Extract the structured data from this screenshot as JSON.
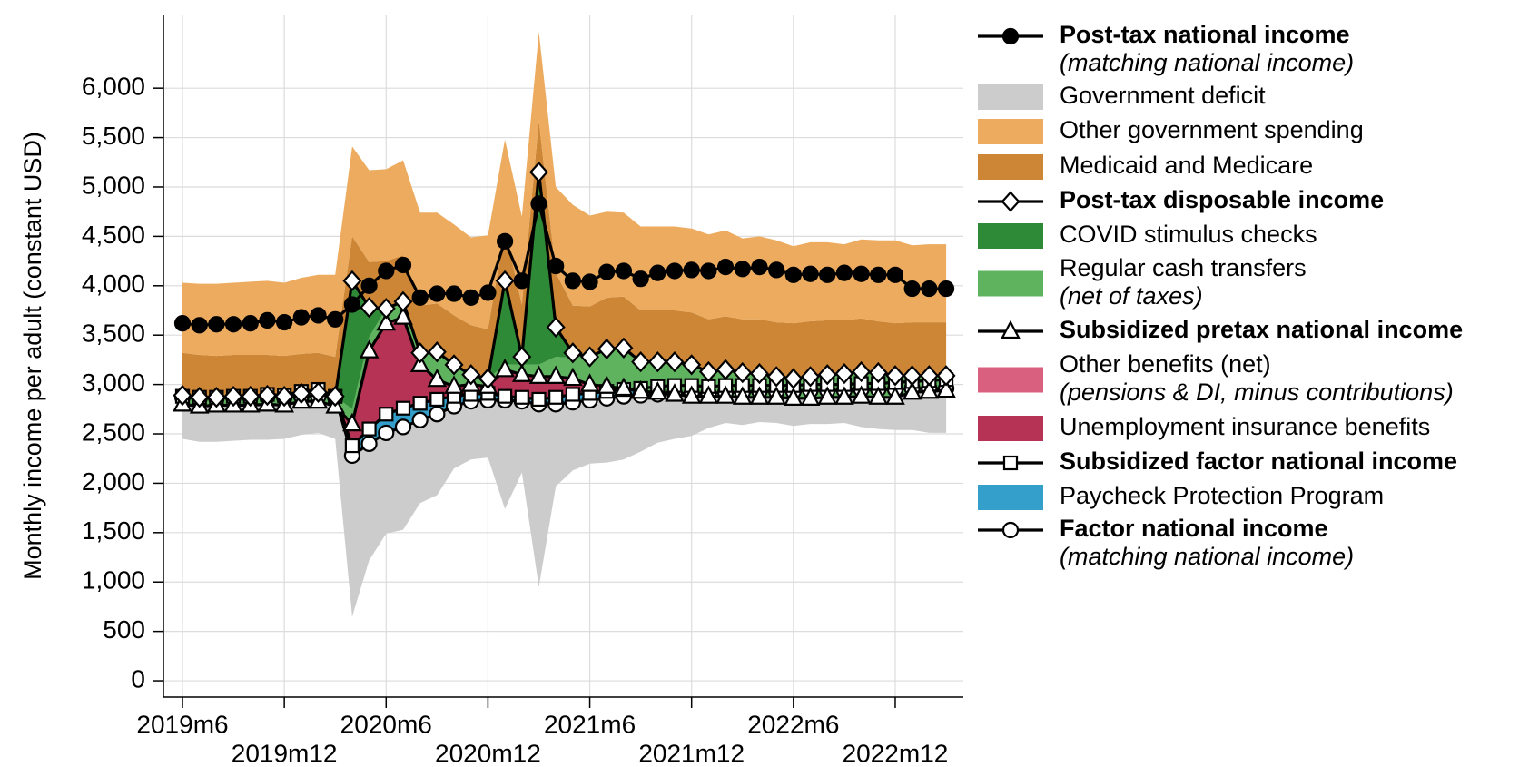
{
  "chart_data": {
    "type": "stacked-area-line",
    "y_label": "Monthly income per adult (constant USD)",
    "categories": [
      "2019m6",
      null,
      null,
      null,
      null,
      null,
      "2019m12",
      null,
      null,
      null,
      null,
      null,
      "2020m6",
      null,
      null,
      null,
      null,
      null,
      "2020m12",
      null,
      null,
      null,
      null,
      null,
      "2021m6",
      null,
      null,
      null,
      null,
      null,
      "2021m12",
      null,
      null,
      null,
      null,
      null,
      "2022m6",
      null,
      null,
      null,
      null,
      null,
      "2022m12",
      null,
      null,
      null
    ],
    "ylim": [
      -165,
      6746
    ],
    "yticks": [
      0,
      500,
      {
        "value": 1000,
        "label": "1,000"
      },
      {
        "value": 1500,
        "label": "1,500"
      },
      {
        "value": 2000,
        "label": "2,000"
      },
      {
        "value": 2500,
        "label": "2,500"
      },
      {
        "value": 3000,
        "label": "3,000"
      },
      {
        "value": 3500,
        "label": "3,500"
      },
      {
        "value": 4000,
        "label": "4,000"
      },
      {
        "value": 4500,
        "label": "4,500"
      },
      {
        "value": 5000,
        "label": "5,000"
      },
      {
        "value": 5500,
        "label": "5,500"
      },
      {
        "value": 6000,
        "label": "6,000"
      }
    ],
    "grid": true,
    "legend": "right",
    "series": [
      {
        "name": "Post-tax national income",
        "subname": "(matching national income)",
        "type": "line",
        "marker": "circle",
        "marker_fill": "#000000",
        "color": "#000000",
        "values": [
          3620,
          3600,
          3610,
          3610,
          3620,
          3650,
          3630,
          3680,
          3700,
          3660,
          3810,
          4000,
          4150,
          4210,
          3880,
          3920,
          3920,
          3880,
          3930,
          4450,
          4050,
          4830,
          4200,
          4050,
          4040,
          4140,
          4150,
          4070,
          4130,
          4150,
          4160,
          4150,
          4190,
          4170,
          4190,
          4160,
          4110,
          4120,
          4110,
          4130,
          4120,
          4110,
          4110,
          3970,
          3970,
          3970
        ]
      },
      {
        "name": "Government deficit",
        "type": "area",
        "stack": "down",
        "color": "#cccccc",
        "values": [
          420,
          440,
          440,
          440,
          430,
          440,
          420,
          390,
          370,
          420,
          1630,
          1180,
          1020,
          1040,
          840,
          820,
          630,
          590,
          580,
          1100,
          720,
          1850,
          830,
          690,
          640,
          650,
          640,
          570,
          490,
          460,
          430,
          350,
          310,
          330,
          310,
          320,
          350,
          340,
          340,
          330,
          380,
          400,
          410,
          420,
          450,
          450
        ]
      },
      {
        "name": "Other government spending",
        "type": "area",
        "stack": "up",
        "color": "#ecab5e",
        "values": [
          710,
          720,
          730,
          730,
          740,
          750,
          740,
          770,
          790,
          830,
          910,
          930,
          930,
          960,
          940,
          920,
          920,
          890,
          950,
          920,
          890,
          900,
          870,
          1020,
          920,
          870,
          850,
          850,
          850,
          850,
          850,
          860,
          870,
          820,
          840,
          830,
          780,
          800,
          790,
          770,
          800,
          820,
          840,
          780,
          790,
          790
        ]
      },
      {
        "name": "Medicaid and Medicare",
        "type": "area",
        "stack": "up",
        "color": "#cc8636",
        "values": [
          430,
          430,
          420,
          420,
          420,
          410,
          410,
          400,
          400,
          400,
          450,
          460,
          480,
          470,
          480,
          490,
          500,
          500,
          500,
          510,
          530,
          520,
          550,
          480,
          510,
          520,
          520,
          520,
          520,
          520,
          530,
          530,
          540,
          540,
          550,
          550,
          560,
          560,
          550,
          540,
          540,
          520,
          530,
          540,
          540,
          540
        ]
      },
      {
        "name": "Post-tax disposable income",
        "type": "line",
        "marker": "diamond",
        "marker_fill": "#ffffff",
        "color": "#000000",
        "values": [
          2890,
          2870,
          2870,
          2880,
          2880,
          2890,
          2880,
          2910,
          2920,
          2880,
          4050,
          3780,
          3770,
          3840,
          3320,
          3330,
          3200,
          3100,
          3060,
          4050,
          3280,
          5150,
          3580,
          3320,
          3280,
          3360,
          3370,
          3230,
          3230,
          3230,
          3200,
          3130,
          3150,
          3120,
          3110,
          3080,
          3060,
          3080,
          3100,
          3110,
          3130,
          3120,
          3090,
          3090,
          3090,
          3090
        ]
      },
      {
        "name": "COVID stimulus checks",
        "type": "area",
        "stack": "up",
        "color": "#2f8a37",
        "values": [
          0,
          0,
          0,
          0,
          0,
          0,
          0,
          0,
          0,
          0,
          1300,
          300,
          0,
          0,
          0,
          0,
          0,
          0,
          0,
          850,
          80,
          1950,
          300,
          50,
          0,
          0,
          0,
          0,
          0,
          0,
          0,
          0,
          0,
          0,
          0,
          0,
          0,
          0,
          0,
          0,
          0,
          0,
          0,
          0,
          0,
          0
        ]
      },
      {
        "name": "Regular cash transfers",
        "subname": "(net of taxes)",
        "type": "area",
        "stack": "up",
        "color": "#5fb35f",
        "values": [
          90,
          90,
          80,
          90,
          90,
          90,
          90,
          80,
          90,
          100,
          150,
          140,
          150,
          160,
          120,
          280,
          220,
          100,
          80,
          50,
          100,
          120,
          200,
          210,
          280,
          380,
          410,
          300,
          310,
          330,
          320,
          250,
          270,
          250,
          240,
          210,
          200,
          220,
          230,
          240,
          250,
          250,
          220,
          170,
          160,
          150
        ]
      },
      {
        "name": "Subsidized pretax national income",
        "type": "line",
        "marker": "triangle",
        "marker_fill": "#ffffff",
        "color": "#000000",
        "values": [
          2800,
          2780,
          2790,
          2790,
          2790,
          2800,
          2790,
          2830,
          2830,
          2780,
          2600,
          3340,
          3620,
          3680,
          3200,
          3050,
          2980,
          3000,
          2980,
          3150,
          3100,
          3080,
          3080,
          3060,
          3000,
          2980,
          2960,
          2930,
          2920,
          2900,
          2880,
          2880,
          2880,
          2870,
          2870,
          2870,
          2860,
          2860,
          2870,
          2870,
          2880,
          2870,
          2870,
          2920,
          2930,
          2940
        ]
      },
      {
        "name": "Other benefits (net)",
        "subname": "(pensions & DI, minus contributions)",
        "type": "area",
        "stack": "up",
        "color": "#d9607f",
        "values": [
          -80,
          -90,
          -80,
          -90,
          -90,
          -100,
          -100,
          -100,
          -120,
          -100,
          -30,
          -30,
          -30,
          -30,
          -30,
          -30,
          -30,
          -30,
          -30,
          -30,
          -40,
          0,
          10,
          -10,
          0,
          0,
          -10,
          -30,
          -60,
          -90,
          -110,
          -100,
          -110,
          -120,
          -120,
          -120,
          -130,
          -140,
          -130,
          -130,
          -130,
          -140,
          -150,
          -110,
          -110,
          -110
        ]
      },
      {
        "name": "Unemployment insurance benefits",
        "type": "area",
        "stack": "up",
        "color": "#b73355",
        "values": [
          0,
          0,
          0,
          0,
          0,
          0,
          0,
          0,
          0,
          0,
          250,
          820,
          950,
          950,
          420,
          230,
          130,
          130,
          100,
          300,
          270,
          230,
          200,
          170,
          90,
          50,
          20,
          0,
          0,
          0,
          0,
          0,
          0,
          0,
          0,
          0,
          0,
          0,
          0,
          0,
          0,
          0,
          0,
          0,
          0,
          0
        ]
      },
      {
        "name": "Subsidized factor national income",
        "type": "line",
        "marker": "square",
        "marker_fill": "#ffffff",
        "color": "#000000",
        "values": [
          2880,
          2870,
          2870,
          2880,
          2880,
          2900,
          2890,
          2930,
          2950,
          2880,
          2380,
          2550,
          2700,
          2760,
          2810,
          2850,
          2880,
          2900,
          2910,
          2880,
          2870,
          2850,
          2870,
          2900,
          2910,
          2930,
          2950,
          2960,
          2980,
          2990,
          2990,
          2980,
          2990,
          2990,
          2990,
          2990,
          2990,
          3000,
          3000,
          3000,
          3010,
          3010,
          3020,
          3030,
          3040,
          3050
        ]
      },
      {
        "name": "Paycheck Protection Program",
        "type": "area",
        "stack": "up",
        "color": "#339fca",
        "values": [
          10,
          10,
          10,
          10,
          10,
          20,
          20,
          50,
          70,
          10,
          100,
          150,
          190,
          190,
          170,
          150,
          100,
          70,
          70,
          40,
          40,
          50,
          70,
          80,
          70,
          70,
          70,
          70,
          80,
          80,
          80,
          70,
          70,
          70,
          60,
          60,
          60,
          60,
          60,
          60,
          60,
          60,
          70,
          70,
          80,
          90
        ]
      },
      {
        "name": "Factor national income",
        "subname": "(matching national income)",
        "type": "line",
        "stack": "base",
        "marker": "circle",
        "marker_fill": "#ffffff",
        "color": "#000000",
        "values": [
          2870,
          2860,
          2860,
          2870,
          2870,
          2880,
          2870,
          2880,
          2880,
          2870,
          2280,
          2400,
          2510,
          2570,
          2640,
          2700,
          2780,
          2830,
          2840,
          2840,
          2830,
          2800,
          2800,
          2820,
          2840,
          2860,
          2880,
          2890,
          2900,
          2910,
          2910,
          2910,
          2920,
          2920,
          2930,
          2930,
          2930,
          2940,
          2940,
          2940,
          2950,
          2950,
          2950,
          2960,
          2960,
          2960
        ]
      }
    ]
  }
}
